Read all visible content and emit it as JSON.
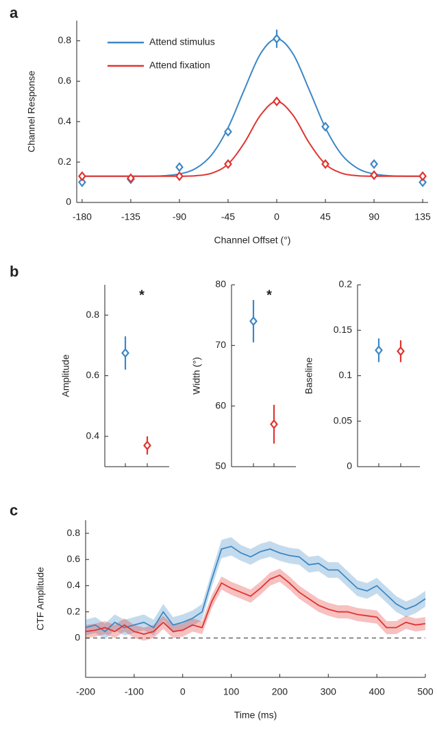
{
  "chart_data": [
    {
      "type": "errorbar_fit",
      "panel": "a",
      "xlabel": "Channel Offset (°)",
      "ylabel": "Channel Response",
      "xlim": [
        -185,
        140
      ],
      "xticks": [
        -180,
        -135,
        -90,
        -45,
        0,
        45,
        90,
        135
      ],
      "ylim": [
        0,
        0.9
      ],
      "yticks": [
        0,
        0.2,
        0.4,
        0.6,
        0.8
      ],
      "legend": "upper left",
      "x": [
        -180,
        -135,
        -90,
        -45,
        0,
        45,
        90,
        135
      ],
      "series": [
        {
          "name": "Attend stimulus",
          "color": "#3c87c5",
          "values": [
            0.1,
            0.115,
            0.175,
            0.35,
            0.81,
            0.375,
            0.19,
            0.1
          ],
          "errors": [
            0.02,
            0.01,
            0.015,
            0.02,
            0.045,
            0.02,
            0.015,
            0.02
          ]
        },
        {
          "name": "Attend fixation",
          "color": "#e0332e",
          "values": [
            0.13,
            0.12,
            0.13,
            0.19,
            0.5,
            0.19,
            0.135,
            0.13
          ],
          "errors": [
            0.015,
            0.01,
            0.015,
            0.012,
            0.02,
            0.01,
            0.01,
            0.012
          ]
        }
      ],
      "fit_x": [
        -180,
        -165,
        -150,
        -135,
        -120,
        -105,
        -90,
        -75,
        -60,
        -45,
        -30,
        -15,
        0,
        15,
        30,
        45,
        60,
        75,
        90,
        105,
        120,
        135
      ],
      "fits": [
        {
          "color": "#3c87c5",
          "values": [
            0.13,
            0.13,
            0.13,
            0.13,
            0.13,
            0.132,
            0.141,
            0.168,
            0.237,
            0.37,
            0.558,
            0.736,
            0.81,
            0.736,
            0.558,
            0.37,
            0.237,
            0.168,
            0.141,
            0.132,
            0.13,
            0.13
          ]
        },
        {
          "color": "#e0332e",
          "values": [
            0.13,
            0.13,
            0.13,
            0.13,
            0.13,
            0.13,
            0.13,
            0.132,
            0.145,
            0.19,
            0.295,
            0.432,
            0.5,
            0.432,
            0.295,
            0.19,
            0.145,
            0.132,
            0.13,
            0.13,
            0.13,
            0.13
          ]
        }
      ]
    },
    {
      "type": "errorbar",
      "panel": "b",
      "ylabel": "Amplitude",
      "annotation": "*",
      "categories": [
        null,
        null
      ],
      "values": [
        0.675,
        0.37
      ],
      "errors": [
        0.055,
        0.03
      ],
      "colors": [
        "#3c87c5",
        "#e0332e"
      ],
      "ylim": [
        0.3,
        0.9
      ],
      "yticks": [
        0.4,
        0.6,
        0.8
      ]
    },
    {
      "type": "errorbar",
      "ylabel": "Width (°)",
      "annotation": "*",
      "categories": [
        null,
        null
      ],
      "values": [
        74,
        57
      ],
      "errors": [
        3.5,
        3.2
      ],
      "colors": [
        "#3c87c5",
        "#e0332e"
      ],
      "ylim": [
        50,
        80
      ],
      "yticks": [
        50,
        60,
        70,
        80
      ]
    },
    {
      "type": "errorbar",
      "ylabel": "Baseline",
      "categories": [
        null,
        null
      ],
      "values": [
        0.128,
        0.127
      ],
      "errors": [
        0.013,
        0.012
      ],
      "colors": [
        "#3c87c5",
        "#e0332e"
      ],
      "ylim": [
        0,
        0.2
      ],
      "yticks": [
        0,
        0.05,
        0.1,
        0.15,
        0.2
      ]
    },
    {
      "type": "timeseries",
      "panel": "c",
      "xlabel": "Time (ms)",
      "ylabel": "CTF Amplitude",
      "xlim": [
        -200,
        500
      ],
      "xticks": [
        -200,
        -100,
        0,
        100,
        200,
        300,
        400,
        500
      ],
      "ylim": [
        -0.3,
        0.9
      ],
      "yticks": [
        0,
        0.2,
        0.4,
        0.6,
        0.8
      ],
      "hline": 0,
      "x": [
        -200,
        -180,
        -160,
        -140,
        -120,
        -100,
        -80,
        -60,
        -40,
        -20,
        0,
        20,
        40,
        60,
        80,
        100,
        120,
        140,
        160,
        180,
        200,
        220,
        240,
        260,
        280,
        300,
        320,
        340,
        360,
        380,
        400,
        420,
        440,
        460,
        480,
        500
      ],
      "series": [
        {
          "color": "#3c87c5",
          "values": [
            0.08,
            0.1,
            0.05,
            0.12,
            0.08,
            0.1,
            0.12,
            0.08,
            0.2,
            0.1,
            0.12,
            0.15,
            0.2,
            0.45,
            0.68,
            0.7,
            0.65,
            0.62,
            0.66,
            0.68,
            0.65,
            0.63,
            0.62,
            0.56,
            0.57,
            0.52,
            0.52,
            0.45,
            0.38,
            0.36,
            0.4,
            0.33,
            0.26,
            0.22,
            0.25,
            0.3
          ],
          "errors": [
            0.06,
            0.06,
            0.06,
            0.06,
            0.06,
            0.06,
            0.06,
            0.06,
            0.06,
            0.06,
            0.06,
            0.06,
            0.06,
            0.06,
            0.07,
            0.07,
            0.06,
            0.06,
            0.06,
            0.06,
            0.06,
            0.06,
            0.06,
            0.06,
            0.06,
            0.06,
            0.06,
            0.06,
            0.06,
            0.06,
            0.06,
            0.06,
            0.06,
            0.06,
            0.06,
            0.06
          ]
        },
        {
          "color": "#e0332e",
          "values": [
            0.05,
            0.06,
            0.08,
            0.05,
            0.1,
            0.05,
            0.03,
            0.05,
            0.12,
            0.05,
            0.06,
            0.1,
            0.08,
            0.28,
            0.42,
            0.38,
            0.35,
            0.32,
            0.38,
            0.45,
            0.48,
            0.42,
            0.35,
            0.3,
            0.25,
            0.22,
            0.2,
            0.2,
            0.18,
            0.17,
            0.16,
            0.08,
            0.08,
            0.12,
            0.1,
            0.11
          ],
          "errors": [
            0.05,
            0.05,
            0.05,
            0.05,
            0.05,
            0.05,
            0.05,
            0.05,
            0.05,
            0.05,
            0.05,
            0.05,
            0.05,
            0.05,
            0.05,
            0.05,
            0.05,
            0.05,
            0.05,
            0.05,
            0.05,
            0.05,
            0.05,
            0.05,
            0.05,
            0.05,
            0.05,
            0.05,
            0.05,
            0.05,
            0.05,
            0.05,
            0.05,
            0.05,
            0.05,
            0.05
          ]
        }
      ]
    }
  ]
}
